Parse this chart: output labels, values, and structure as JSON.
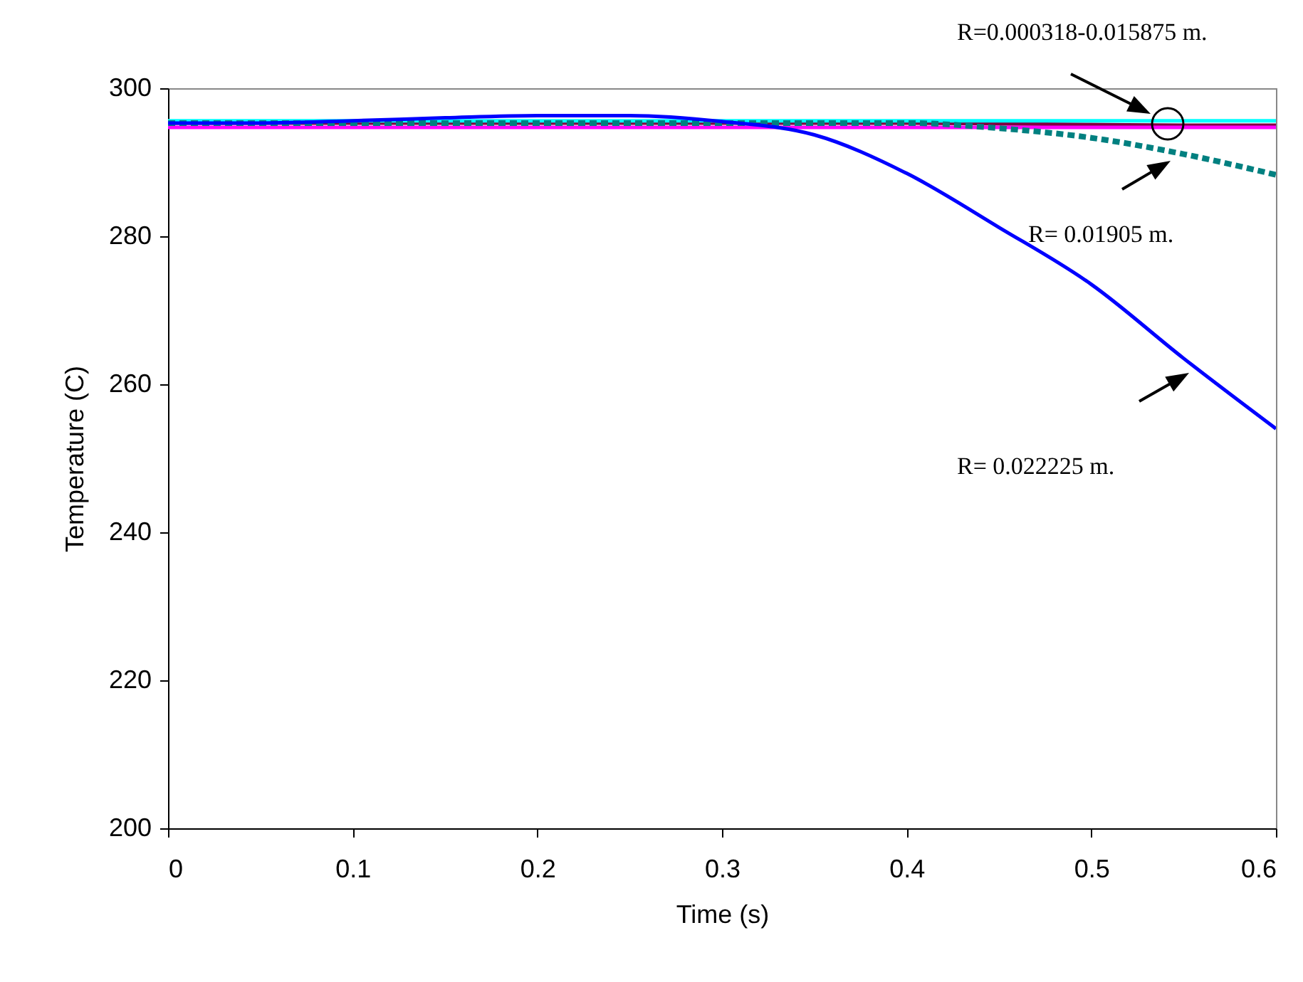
{
  "chart_data": {
    "type": "line",
    "xlabel": "Time (s)",
    "ylabel": "Temperature (C)",
    "x": [
      0,
      0.05,
      0.1,
      0.15,
      0.2,
      0.25,
      0.3,
      0.35,
      0.4,
      0.45,
      0.5,
      0.55,
      0.6
    ],
    "xlim": [
      0,
      0.6
    ],
    "xticks": [
      0,
      0.1,
      0.2,
      0.3,
      0.4,
      0.5,
      0.6
    ],
    "ylim": [
      200,
      300
    ],
    "yticks": [
      200,
      220,
      240,
      260,
      280,
      300
    ],
    "grid": false,
    "series": [
      {
        "color": "#800040",
        "values": [
          295.3,
          295.3,
          295.3,
          295.3,
          295.3,
          295.3,
          295.3,
          295.3,
          295.3,
          295.2,
          295.1,
          295.0,
          295.0
        ]
      },
      {
        "color": "#00ffff",
        "values": [
          295.6,
          295.6,
          295.6,
          295.6,
          295.6,
          295.6,
          295.6,
          295.6,
          295.6,
          295.6,
          295.6,
          295.6,
          295.6
        ]
      },
      {
        "color": "#ff00ff",
        "values": [
          294.7,
          294.7,
          294.7,
          294.7,
          294.7,
          294.7,
          294.7,
          294.7,
          294.7,
          294.7,
          294.7,
          294.7,
          294.7
        ]
      },
      {
        "color": "#008080",
        "line_style": "dashed",
        "values": [
          295.3,
          295.3,
          295.3,
          295.3,
          295.3,
          295.3,
          295.3,
          295.3,
          295.3,
          294.6,
          293.3,
          291.1,
          288.3
        ]
      },
      {
        "color": "#0000ff",
        "values": [
          295.3,
          295.3,
          295.6,
          296.0,
          296.3,
          296.3,
          295.5,
          293.7,
          288.5,
          281.2,
          273.5,
          263.5,
          254.0
        ]
      }
    ],
    "annotations": [
      "R=0.000318-0.015875 m.",
      "R= 0.01905 m.",
      "R= 0.022225 m."
    ]
  }
}
